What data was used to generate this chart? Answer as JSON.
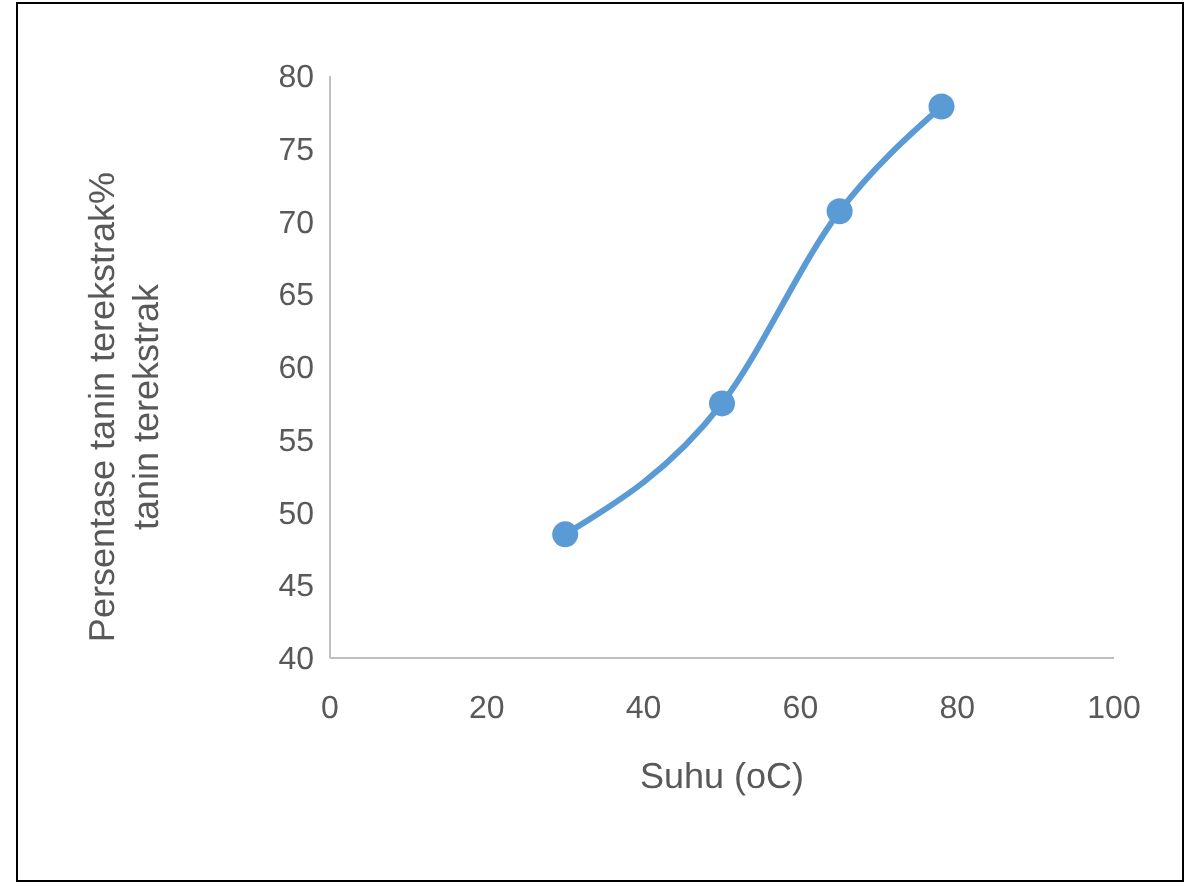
{
  "chart_data": {
    "type": "line",
    "xlabel": "Suhu (oC)",
    "ylabel": "Persentase tanin terekstrak%\ntanin terekstrak",
    "x": [
      30,
      50,
      65,
      78
    ],
    "series": [
      {
        "color": "#5b9bd5",
        "values": [
          48.5,
          57.5,
          70.7,
          77.9
        ]
      }
    ],
    "xlim": [
      0,
      100
    ],
    "xticks": [
      0,
      20,
      40,
      60,
      80,
      100
    ],
    "ylim": [
      40,
      80
    ],
    "yticks": [
      40,
      45,
      50,
      55,
      60,
      65,
      70,
      75,
      80
    ],
    "grid": false,
    "marker": "circle",
    "line_style": "solid"
  }
}
